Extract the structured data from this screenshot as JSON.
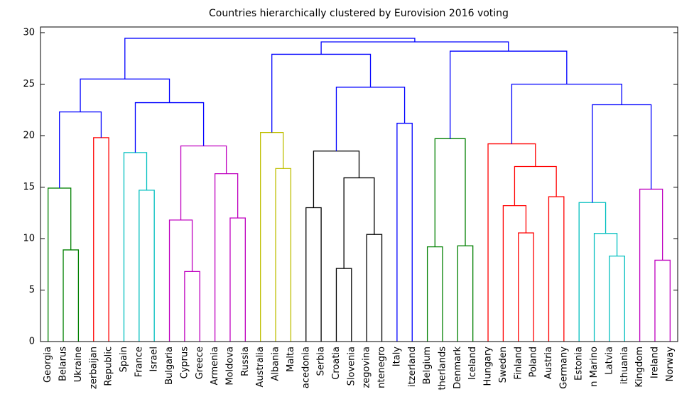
{
  "chart_data": {
    "type": "dendrogram",
    "title": "Countries hierarchically clustered by Eurovision 2016 voting",
    "leaves": [
      "Georgia",
      "Belarus",
      "Ukraine",
      "zerbaijan",
      "Republic",
      "Spain",
      "France",
      "Israel",
      "Bulgaria",
      "Cyprus",
      "Greece",
      "Armenia",
      "Moldova",
      "Russia",
      "Australia",
      "Albania",
      "Malta",
      "acedonia",
      "Serbia",
      "Croatia",
      "Slovenia",
      "zegovina",
      "ntenegro",
      "Italy",
      "itzerland",
      "Belgium",
      "therlands",
      "Denmark",
      "Iceland",
      "Hungary",
      "Sweden",
      "Finland",
      "Poland",
      "Austria",
      "Germany",
      "Estonia",
      "n Marino",
      "Latvia",
      "ithuania",
      "Kingdom",
      "Ireland",
      "Norway"
    ],
    "xlim": [
      0,
      420
    ],
    "ylim": [
      0,
      30.55
    ],
    "yticks": [
      0,
      5,
      10,
      15,
      20,
      25,
      30
    ],
    "links": [
      {
        "x": [
          15,
          15,
          25,
          25
        ],
        "y": [
          0,
          8.9,
          8.9,
          0
        ],
        "color": "#008000"
      },
      {
        "x": [
          5,
          5,
          20,
          20
        ],
        "y": [
          0,
          14.9,
          14.9,
          8.9
        ],
        "color": "#008000"
      },
      {
        "x": [
          35,
          35,
          45,
          45
        ],
        "y": [
          0,
          19.8,
          19.8,
          0
        ],
        "color": "#ff0000"
      },
      {
        "x": [
          12.5,
          12.5,
          40,
          40
        ],
        "y": [
          14.9,
          22.3,
          22.3,
          19.8
        ],
        "color": "#0000ff"
      },
      {
        "x": [
          65,
          65,
          75,
          75
        ],
        "y": [
          0,
          14.7,
          14.7,
          0
        ],
        "color": "#00bfbf"
      },
      {
        "x": [
          55,
          55,
          70,
          70
        ],
        "y": [
          0,
          18.35,
          18.35,
          14.7
        ],
        "color": "#00bfbf"
      },
      {
        "x": [
          95,
          95,
          105,
          105
        ],
        "y": [
          0,
          6.8,
          6.8,
          0
        ],
        "color": "#bf00bf"
      },
      {
        "x": [
          85,
          85,
          100,
          100
        ],
        "y": [
          0,
          11.8,
          11.8,
          6.8
        ],
        "color": "#bf00bf"
      },
      {
        "x": [
          125,
          125,
          135,
          135
        ],
        "y": [
          0,
          12.0,
          12.0,
          0
        ],
        "color": "#bf00bf"
      },
      {
        "x": [
          115,
          115,
          130,
          130
        ],
        "y": [
          0,
          16.3,
          16.3,
          12.0
        ],
        "color": "#bf00bf"
      },
      {
        "x": [
          92.5,
          92.5,
          122.5,
          122.5
        ],
        "y": [
          11.8,
          19.0,
          19.0,
          16.3
        ],
        "color": "#bf00bf"
      },
      {
        "x": [
          62.5,
          62.5,
          107.5,
          107.5
        ],
        "y": [
          18.35,
          23.2,
          23.2,
          19.0
        ],
        "color": "#0000ff"
      },
      {
        "x": [
          26.25,
          26.25,
          85,
          85
        ],
        "y": [
          22.3,
          25.5,
          25.5,
          23.2
        ],
        "color": "#0000ff"
      },
      {
        "x": [
          155,
          155,
          165,
          165
        ],
        "y": [
          0,
          16.8,
          16.8,
          0
        ],
        "color": "#bfbf00"
      },
      {
        "x": [
          145,
          145,
          160,
          160
        ],
        "y": [
          0,
          20.3,
          20.3,
          16.8
        ],
        "color": "#bfbf00"
      },
      {
        "x": [
          175,
          175,
          185,
          185
        ],
        "y": [
          0,
          13.0,
          13.0,
          0
        ],
        "color": "#000000"
      },
      {
        "x": [
          195,
          195,
          205,
          205
        ],
        "y": [
          0,
          7.1,
          7.1,
          0
        ],
        "color": "#000000"
      },
      {
        "x": [
          215,
          215,
          225,
          225
        ],
        "y": [
          0,
          10.4,
          10.4,
          0
        ],
        "color": "#000000"
      },
      {
        "x": [
          200,
          200,
          220,
          220
        ],
        "y": [
          7.1,
          15.9,
          15.9,
          10.4
        ],
        "color": "#000000"
      },
      {
        "x": [
          180,
          180,
          210,
          210
        ],
        "y": [
          13.0,
          18.5,
          18.5,
          15.9
        ],
        "color": "#000000"
      },
      {
        "x": [
          235,
          235,
          245,
          245
        ],
        "y": [
          0,
          21.2,
          21.2,
          0
        ],
        "color": "#0000ff"
      },
      {
        "x": [
          195,
          195,
          240,
          240
        ],
        "y": [
          18.5,
          24.7,
          24.7,
          21.2
        ],
        "color": "#0000ff"
      },
      {
        "x": [
          152.5,
          152.5,
          217.5,
          217.5
        ],
        "y": [
          20.3,
          27.9,
          27.9,
          24.7
        ],
        "color": "#0000ff"
      },
      {
        "x": [
          255,
          255,
          265,
          265
        ],
        "y": [
          0,
          9.2,
          9.2,
          0
        ],
        "color": "#008000"
      },
      {
        "x": [
          275,
          275,
          285,
          285
        ],
        "y": [
          0,
          9.3,
          9.3,
          0
        ],
        "color": "#008000"
      },
      {
        "x": [
          260,
          260,
          280,
          280
        ],
        "y": [
          9.2,
          19.7,
          19.7,
          9.3
        ],
        "color": "#008000"
      },
      {
        "x": [
          315,
          315,
          325,
          325
        ],
        "y": [
          0,
          10.55,
          10.55,
          0
        ],
        "color": "#ff0000"
      },
      {
        "x": [
          305,
          305,
          320,
          320
        ],
        "y": [
          0,
          13.2,
          13.2,
          10.55
        ],
        "color": "#ff0000"
      },
      {
        "x": [
          335,
          335,
          345,
          345
        ],
        "y": [
          0,
          14.07,
          14.07,
          0
        ],
        "color": "#ff0000"
      },
      {
        "x": [
          312.5,
          312.5,
          340,
          340
        ],
        "y": [
          13.2,
          17.0,
          17.0,
          14.07
        ],
        "color": "#ff0000"
      },
      {
        "x": [
          295,
          295,
          326.25,
          326.25
        ],
        "y": [
          0,
          19.2,
          19.2,
          17.0
        ],
        "color": "#ff0000"
      },
      {
        "x": [
          375,
          375,
          385,
          385
        ],
        "y": [
          0,
          8.3,
          8.3,
          0
        ],
        "color": "#00bfbf"
      },
      {
        "x": [
          365,
          365,
          380,
          380
        ],
        "y": [
          0,
          10.5,
          10.5,
          8.3
        ],
        "color": "#00bfbf"
      },
      {
        "x": [
          355,
          355,
          372.5,
          372.5
        ],
        "y": [
          0,
          13.5,
          13.5,
          10.5
        ],
        "color": "#00bfbf"
      },
      {
        "x": [
          405,
          405,
          415,
          415
        ],
        "y": [
          0,
          7.9,
          7.9,
          0
        ],
        "color": "#bf00bf"
      },
      {
        "x": [
          395,
          395,
          410,
          410
        ],
        "y": [
          0,
          14.8,
          14.8,
          7.9
        ],
        "color": "#bf00bf"
      },
      {
        "x": [
          363.75,
          363.75,
          402.5,
          402.5
        ],
        "y": [
          13.5,
          23.0,
          23.0,
          14.8
        ],
        "color": "#0000ff"
      },
      {
        "x": [
          310.625,
          310.625,
          383.125,
          383.125
        ],
        "y": [
          19.2,
          25.0,
          25.0,
          23.0
        ],
        "color": "#0000ff"
      },
      {
        "x": [
          270,
          270,
          346.875,
          346.875
        ],
        "y": [
          19.7,
          28.2,
          28.2,
          25.0
        ],
        "color": "#0000ff"
      },
      {
        "x": [
          185,
          185,
          308.4375,
          308.4375
        ],
        "y": [
          27.9,
          29.1,
          29.1,
          28.2
        ],
        "color": "#0000ff"
      },
      {
        "x": [
          55.625,
          55.625,
          246.71875,
          246.71875
        ],
        "y": [
          25.5,
          29.45,
          29.45,
          29.1
        ],
        "color": "#0000ff"
      }
    ]
  }
}
